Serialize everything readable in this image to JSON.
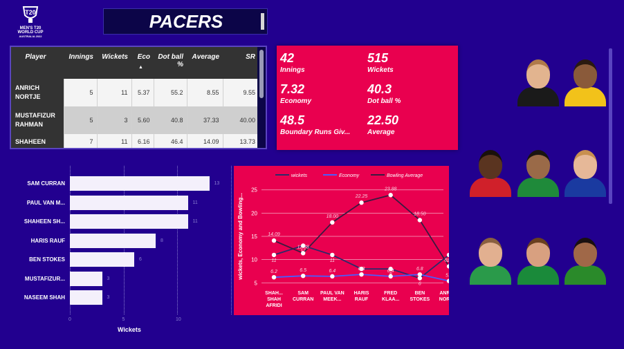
{
  "logo": {
    "line1": "MEN'S T20",
    "line2": "WORLD CUP",
    "line3": "AUSTRALIA 2022",
    "mark": "T20"
  },
  "title": "PACERS",
  "table": {
    "headers": [
      "Player",
      "Innings",
      "Wickets",
      "Eco",
      "Dot ball %",
      "Average",
      "SR"
    ],
    "sort_indicator": "▲",
    "rows": [
      {
        "player": "ANRICH NORTJE",
        "innings": "5",
        "wickets": "11",
        "eco": "5.37",
        "dot": "55.2",
        "avg": "8.55",
        "sr": "9.55"
      },
      {
        "player": "MUSTAFIZUR RAHMAN",
        "innings": "5",
        "wickets": "3",
        "eco": "5.60",
        "dot": "40.8",
        "avg": "37.33",
        "sr": "40.00"
      },
      {
        "player": "SHAHEEN",
        "innings": "7",
        "wickets": "11",
        "eco": "6.16",
        "dot": "46.4",
        "avg": "14.09",
        "sr": "13.73"
      }
    ]
  },
  "kpis": [
    {
      "value": "42",
      "label": "Innings"
    },
    {
      "value": "515",
      "label": "Wickets"
    },
    {
      "value": "7.32",
      "label": "Economy"
    },
    {
      "value": "40.3",
      "label": "Dot ball %"
    },
    {
      "value": "48.5",
      "label": "Boundary Runs Giv..."
    },
    {
      "value": "22.50",
      "label": "Average"
    }
  ],
  "chart_data": [
    {
      "type": "bar",
      "orientation": "horizontal",
      "categories": [
        "SAM CURRAN",
        "PAUL VAN M...",
        "SHAHEEN SH...",
        "HARIS RAUF",
        "BEN STOKES",
        "MUSTAFIZUR...",
        "NASEEM SHAH"
      ],
      "values": [
        13,
        11,
        11,
        8,
        6,
        3,
        3
      ],
      "xlabel": "Wickets",
      "xticks": [
        "0",
        "5",
        "10"
      ],
      "xlim": [
        0,
        15
      ],
      "grid": true,
      "color": "#f4f0fb"
    },
    {
      "type": "line",
      "categories": [
        "SHAH... SHAH AFRIDI",
        "SAM CURRAN",
        "PAUL VAN MEEK...",
        "HARIS RAUF",
        "FRED KLAA...",
        "BEN STOKES",
        "ANRICH NORTJE"
      ],
      "series": [
        {
          "name": "wickets",
          "values": [
            11,
            13,
            11,
            8,
            8,
            6,
            11
          ],
          "color": "#2a2a6a",
          "labels": [
            "11",
            "13",
            "11",
            "8",
            "8",
            "6",
            "11"
          ]
        },
        {
          "name": "Economy",
          "values": [
            6.2,
            6.5,
            6.4,
            6.8,
            6.4,
            6.8,
            5.4
          ],
          "color": "#4a5cff",
          "labels": [
            "6.2",
            "6.5",
            "6.4",
            "6.8",
            "6.4",
            "6.8",
            "5.4"
          ]
        },
        {
          "name": "Bowling Average",
          "values": [
            14.09,
            11.38,
            18.0,
            22.25,
            23.88,
            18.5,
            8.55
          ],
          "color": "#3a1a40",
          "labels": [
            "14.09",
            "11.38",
            "18.00",
            "22.25",
            "23.88",
            "18.50",
            "8.55"
          ]
        }
      ],
      "ylabel": "wickets, Economy and Bowling...",
      "yticks": [
        5,
        10,
        15,
        20,
        25
      ],
      "ylim": [
        4,
        26
      ],
      "grid": true,
      "legend": "top"
    }
  ],
  "photos": [
    {
      "name": "player-photo-1",
      "skin": "#e2b48f",
      "hair": "#b07a4a",
      "kit": "#1a1a1a"
    },
    {
      "name": "player-photo-2",
      "skin": "#8a5a3a",
      "hair": "#2a1a10",
      "kit": "#f2c21a"
    },
    {
      "name": "player-photo-3",
      "skin": "#5a3420",
      "hair": "#1a100a",
      "kit": "#d0202a"
    },
    {
      "name": "player-photo-4",
      "skin": "#9a6a48",
      "hair": "#1a1410",
      "kit": "#1f8a3a"
    },
    {
      "name": "player-photo-5",
      "skin": "#e6b898",
      "hair": "#c89050",
      "kit": "#1a3aa0"
    },
    {
      "name": "player-photo-6",
      "skin": "#e2b090",
      "hair": "#8a6040",
      "kit": "#2a9a4a"
    },
    {
      "name": "player-photo-7",
      "skin": "#d8a080",
      "hair": "#6a4020",
      "kit": "#1a8a3a"
    },
    {
      "name": "player-photo-8",
      "skin": "#a06848",
      "hair": "#1a1010",
      "kit": "#2a8a2a"
    }
  ]
}
